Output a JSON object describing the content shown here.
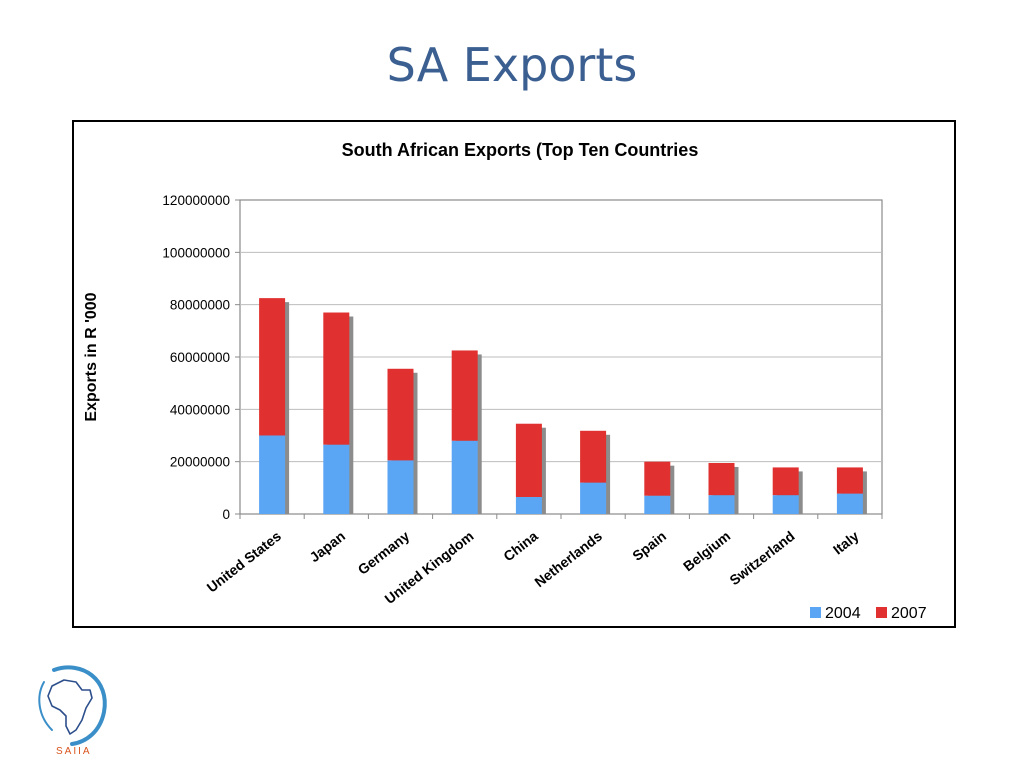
{
  "slide": {
    "title": "SA Exports"
  },
  "logo": {
    "text": "SAIIA"
  },
  "chart_data": {
    "type": "bar",
    "stacked": true,
    "title": "South African Exports (Top Ten Countries",
    "xlabel": "",
    "ylabel": "Exports in R '000",
    "ylim": [
      0,
      120000000
    ],
    "yticks": [
      "0",
      "20000000",
      "40000000",
      "60000000",
      "80000000",
      "100000000",
      "120000000"
    ],
    "categories": [
      "United States",
      "Japan",
      "Germany",
      "United Kingdom",
      "China",
      "Netherlands",
      "Spain",
      "Belgium",
      "Switzerland",
      "Italy"
    ],
    "series": [
      {
        "name": "2004",
        "color": "#5aa6f5",
        "values": [
          30000000,
          26500000,
          20500000,
          28000000,
          6500000,
          12000000,
          7000000,
          7200000,
          7200000,
          7800000
        ]
      },
      {
        "name": "2007",
        "color": "#e03030",
        "values": [
          52500000,
          50500000,
          35000000,
          34500000,
          28000000,
          19800000,
          13000000,
          12300000,
          10600000,
          10000000
        ]
      }
    ],
    "grid": true,
    "legend_position": "bottom-right"
  }
}
